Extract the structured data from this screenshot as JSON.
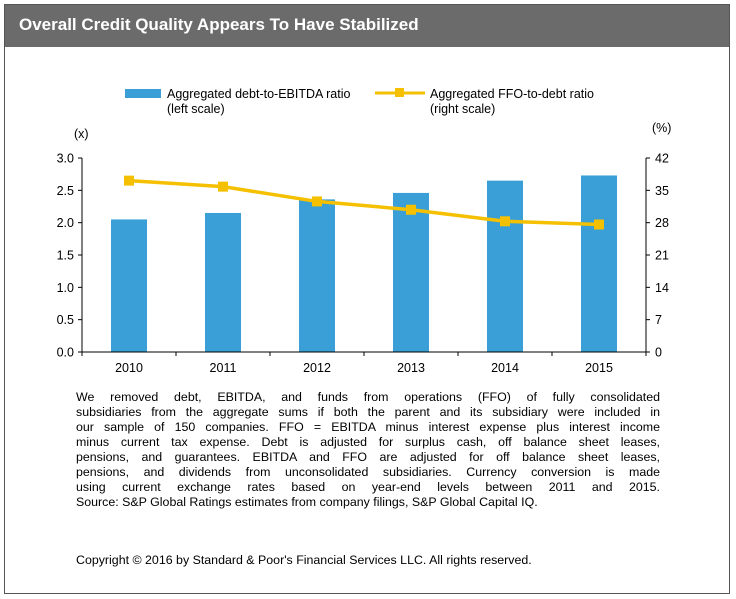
{
  "title": "Overall Credit Quality Appears To Have Stabilized",
  "chart_data": {
    "type": "bar",
    "categories": [
      "2010",
      "2011",
      "2012",
      "2013",
      "2014",
      "2015"
    ],
    "series": [
      {
        "name": "Aggregated debt-to-EBITDA ratio (left scale)",
        "legend_line1": "Aggregated debt-to-EBITDA ratio",
        "legend_line2": "(left scale)",
        "type": "bar",
        "axis": "left",
        "color": "#3a9fd6",
        "values": [
          2.05,
          2.15,
          2.36,
          2.46,
          2.65,
          2.73
        ]
      },
      {
        "name": "Aggregated FFO-to-debt ratio (right scale)",
        "legend_line1": "Aggregated FFO-to-debt ratio",
        "legend_line2": "(right scale)",
        "type": "line",
        "axis": "right",
        "color": "#f5c000",
        "values": [
          37.1,
          35.8,
          32.6,
          30.8,
          28.3,
          27.6
        ]
      }
    ],
    "y_left": {
      "label": "(x)",
      "min": 0,
      "max": 3,
      "ticks": [
        "0.0",
        "0.5",
        "1.0",
        "1.5",
        "2.0",
        "2.5",
        "3.0"
      ]
    },
    "y_right": {
      "label": "(%)",
      "min": 0,
      "max": 42,
      "ticks": [
        "0",
        "7",
        "14",
        "21",
        "28",
        "35",
        "42"
      ]
    },
    "grid": false,
    "legend_position": "top"
  },
  "footnote": {
    "lines": [
      "We removed debt, EBITDA, and funds from operations (FFO) of fully consolidated",
      "subsidiaries from the aggregate sums if both the parent and its subsidiary were included in",
      "our sample of 150 companies. FFO = EBITDA minus interest expense plus interest income",
      "minus current tax expense. Debt is adjusted for surplus cash, off balance sheet leases,",
      "pensions, and guarantees. EBITDA and FFO are adjusted for off balance sheet leases,",
      "pensions, and dividends from unconsolidated subsidiaries. Currency conversion is made",
      "using current exchange rates based on year-end levels between 2011 and 2015."
    ],
    "source": "Source: S&P Global Ratings estimates from company filings, S&P Global Capital IQ."
  },
  "copyright": "Copyright © 2016 by Standard & Poor's Financial Services LLC. All rights reserved."
}
